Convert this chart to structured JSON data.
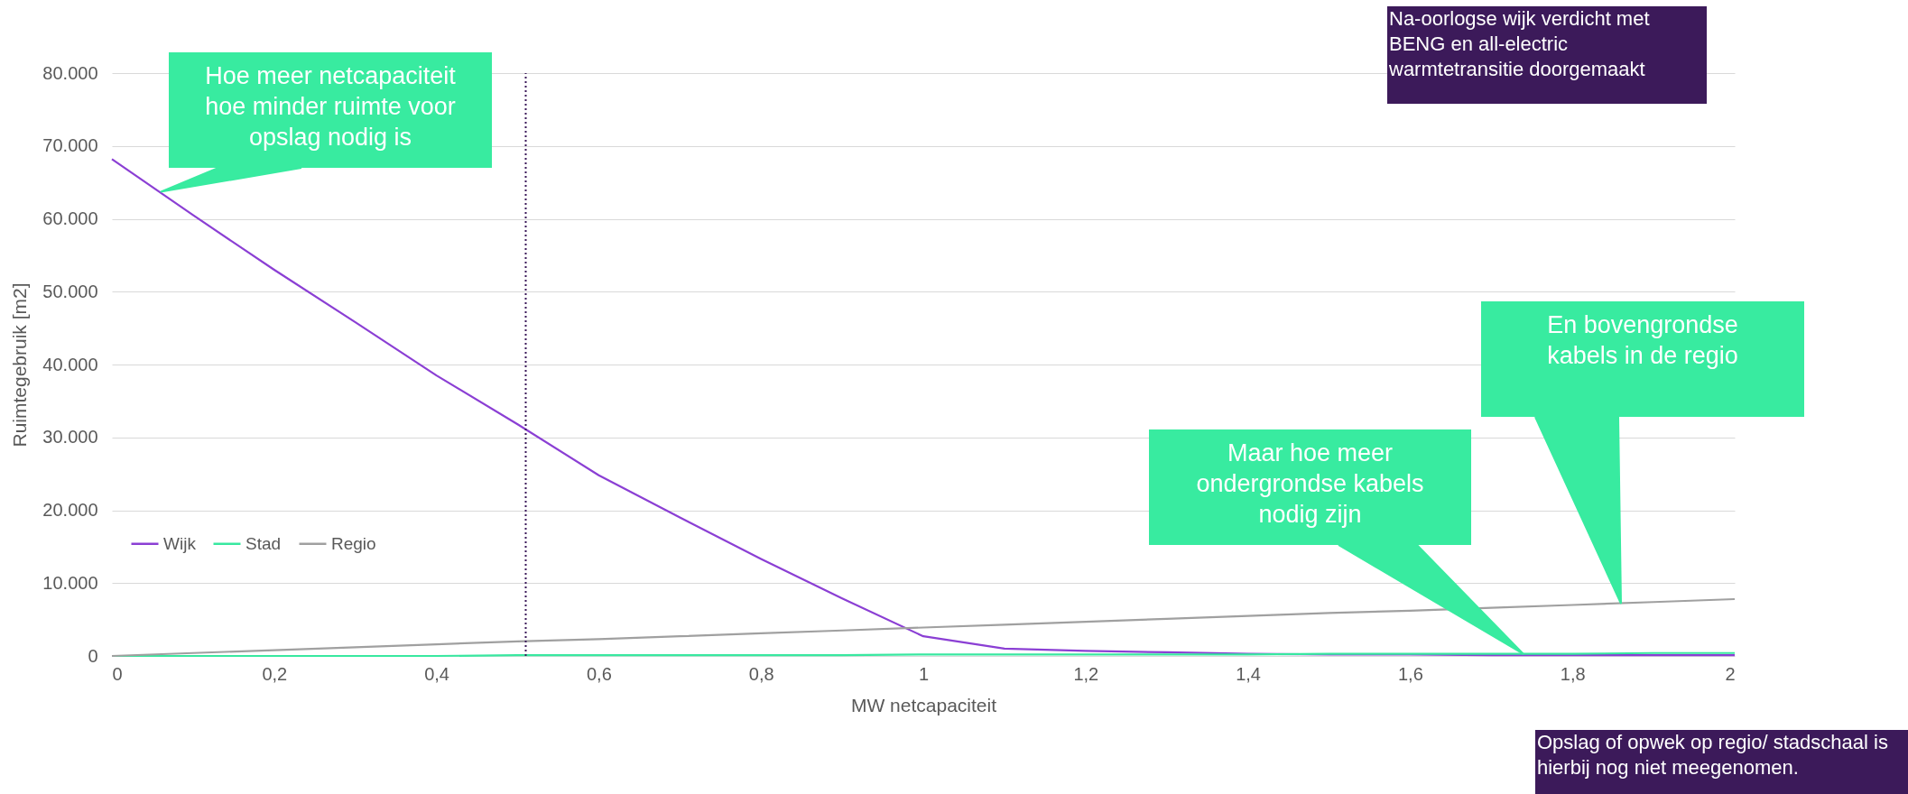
{
  "chart_data": {
    "type": "line",
    "xlabel": "MW netcapaciteit",
    "ylabel": "Ruimtegebruik [m2]",
    "xlim": [
      0,
      2
    ],
    "ylim": [
      0,
      80000
    ],
    "xticks": [
      0,
      {
        "value": 0.2,
        "label": "0,2"
      },
      {
        "value": 0.4,
        "label": "0,4"
      },
      {
        "value": 0.6,
        "label": "0,6"
      },
      {
        "value": 0.8,
        "label": "0,8"
      },
      1,
      {
        "value": 1.2,
        "label": "1,2"
      },
      {
        "value": 1.4,
        "label": "1,4"
      },
      {
        "value": 1.6,
        "label": "1,6"
      },
      {
        "value": 1.8,
        "label": "1,8"
      },
      2
    ],
    "yticks": [
      0,
      {
        "value": 10000,
        "label": "10.000"
      },
      {
        "value": 20000,
        "label": "20.000"
      },
      {
        "value": 30000,
        "label": "30.000"
      },
      {
        "value": 40000,
        "label": "40.000"
      },
      {
        "value": 50000,
        "label": "50.000"
      },
      {
        "value": 60000,
        "label": "60.000"
      },
      {
        "value": 70000,
        "label": "70.000"
      },
      {
        "value": 80000,
        "label": "80.000"
      }
    ],
    "x": [
      0,
      0.1,
      0.2,
      0.3,
      0.4,
      0.5,
      0.6,
      0.7,
      0.8,
      0.9,
      1.0,
      1.1,
      1.2,
      1.3,
      1.4,
      1.5,
      1.6,
      1.7,
      1.8,
      1.9,
      2.0
    ],
    "series": [
      {
        "name": "Wijk",
        "color": "#8b3fd4",
        "values": [
          68200,
          60500,
          53000,
          45800,
          38500,
          31800,
          24800,
          19000,
          13300,
          7900,
          2700,
          1000,
          700,
          500,
          300,
          200,
          200,
          100,
          100,
          100,
          100
        ]
      },
      {
        "name": "Stad",
        "color": "#38e8a0",
        "values": [
          0,
          0,
          0,
          0,
          0,
          100,
          100,
          100,
          100,
          100,
          200,
          200,
          200,
          200,
          200,
          300,
          300,
          300,
          300,
          400,
          400
        ]
      },
      {
        "name": "Regio",
        "color": "#a0a0a0",
        "values": [
          0,
          400,
          800,
          1200,
          1600,
          2000,
          2300,
          2700,
          3100,
          3500,
          3900,
          4300,
          4700,
          5100,
          5500,
          5900,
          6200,
          6600,
          7000,
          7400,
          7800
        ]
      }
    ],
    "ref_lines": [
      {
        "axis": "x",
        "value": 0.51,
        "color": "#3c1a5a",
        "line_style": "dotted"
      }
    ],
    "annotations": [
      {
        "text": "Hoe meer netcapaciteit hoe minder ruimte voor opslag nodig is",
        "x": 0.06,
        "y": 63700
      },
      "Maar hoe meer ondergrondse kabels nodig zijn",
      "En bovengrondse kabels in de regio",
      "Na-oorlogse wijk verdicht met BENG en all-electric warmtetransitie doorgemaakt",
      "Opslag of opwek op regio/ stadschaal is hierbij nog niet meegenomen."
    ],
    "grid": "y",
    "legend": "bottom left",
    "line_style": "solid",
    "marker": "none"
  }
}
